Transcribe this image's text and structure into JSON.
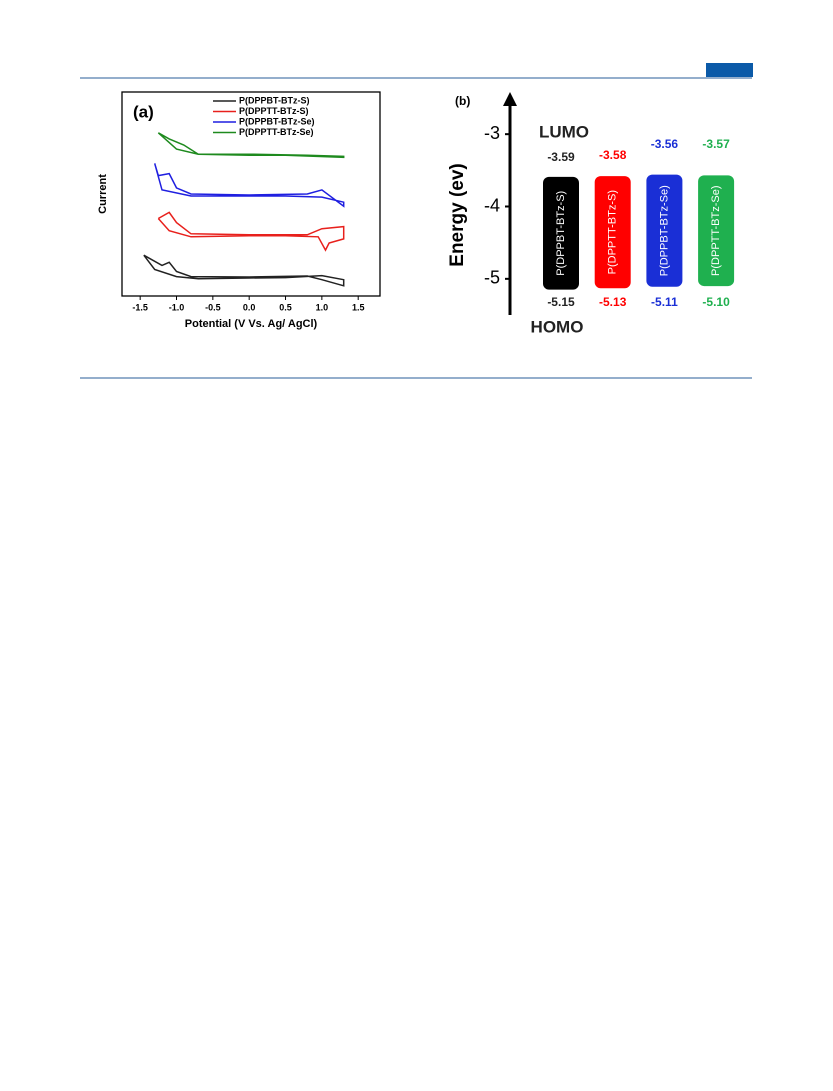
{
  "chart_data": [
    {
      "type": "line",
      "panel": "(a)",
      "xlabel": "Potential (V Vs. Ag/ AgCl)",
      "ylabel": "Current",
      "xlim": [
        -1.75,
        1.8
      ],
      "ylim": [
        0,
        10
      ],
      "xticks": [
        -1.5,
        {
          "value": -1,
          "label": "-1.0"
        },
        -0.5,
        {
          "value": 0,
          "label": "0.0"
        },
        0.5,
        {
          "value": 1,
          "label": "1.0"
        },
        1.5
      ],
      "legend": "upper right",
      "series": [
        {
          "name": "P(DPPBT-BTz-S)",
          "color": "#222222",
          "x": [
            -1.45,
            -1.2,
            -1.1,
            -1.0,
            -0.8,
            0,
            0.8,
            1.0,
            1.3,
            1.3,
            1.0,
            0.5,
            0,
            -0.7,
            -1.0,
            -1.3,
            -1.45
          ],
          "values": [
            2.0,
            1.5,
            1.65,
            1.2,
            0.95,
            0.93,
            0.98,
            0.8,
            0.5,
            0.8,
            1.0,
            0.9,
            0.88,
            0.85,
            0.95,
            1.3,
            2.0
          ]
        },
        {
          "name": "P(DPPTT-BTz-S)",
          "color": "#e8201c",
          "x": [
            -1.25,
            -1.1,
            -1.0,
            -0.8,
            0,
            0.8,
            1.0,
            1.3,
            1.3,
            1.1,
            1.05,
            0.95,
            0.5,
            0,
            -0.8,
            -1.1,
            -1.25
          ],
          "values": [
            3.8,
            4.1,
            3.6,
            3.05,
            3.0,
            3.0,
            3.3,
            3.4,
            2.8,
            2.6,
            2.25,
            2.9,
            2.95,
            2.95,
            2.9,
            3.2,
            3.8
          ]
        },
        {
          "name": "P(DPPBT-BTz-Se)",
          "color": "#1f1fe0",
          "x": [
            -1.3,
            -1.25,
            -1.1,
            -1.0,
            -0.8,
            0,
            0.8,
            1.0,
            1.3,
            1.3,
            1.0,
            0.5,
            0,
            -0.8,
            -1.2,
            -1.3
          ],
          "values": [
            6.5,
            5.9,
            6.0,
            5.3,
            5.0,
            4.95,
            5.0,
            5.2,
            4.4,
            4.6,
            4.85,
            4.9,
            4.9,
            4.9,
            5.2,
            6.5
          ]
        },
        {
          "name": "P(DPPTT-BTz-Se)",
          "color": "#1e8a1e",
          "x": [
            -1.25,
            -1.1,
            -0.9,
            -0.7,
            0,
            0.8,
            1.3,
            1.3,
            0.5,
            0,
            -0.7,
            -1.0,
            -1.25
          ],
          "values": [
            8.0,
            7.7,
            7.4,
            6.95,
            6.95,
            6.9,
            6.85,
            6.8,
            6.9,
            6.9,
            6.95,
            7.2,
            8.0
          ]
        }
      ]
    },
    {
      "type": "bar",
      "panel": "(b)",
      "ylabel": "Energy (ev)",
      "ylim": [
        -5.5,
        -2.5
      ],
      "yticks": [
        -3,
        -4,
        -5
      ],
      "categories": [
        "P(DPPBT-BTz-S)",
        "P(DPPTT-BTz-S)",
        "P(DPPBT-BTz-Se)",
        "P(DPPTT-BTz-Se)"
      ],
      "colors": [
        "#000000",
        "#ff0000",
        "#1a2fd6",
        "#1fb04f"
      ],
      "series": [
        {
          "name": "LUMO",
          "values": [
            -3.59,
            -3.58,
            -3.56,
            -3.57
          ]
        },
        {
          "name": "HOMO",
          "values": [
            -5.15,
            -5.13,
            -5.11,
            -5.1
          ],
          "value_labels": [
            "-5.15",
            "-5.13",
            "-5.11",
            "-5.10"
          ]
        }
      ]
    }
  ]
}
